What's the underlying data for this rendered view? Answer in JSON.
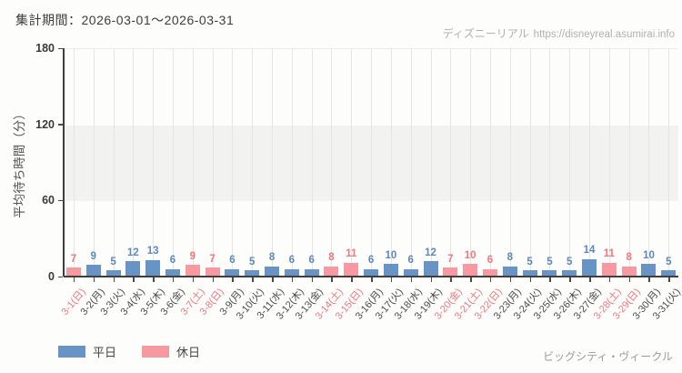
{
  "header": {
    "period_label": "集計期間：2026-03-01〜2026-03-31",
    "watermark_brand": "ディズニーリアル",
    "watermark_url": "https://disneyreal.asumirai.info"
  },
  "chart_data": {
    "type": "bar",
    "title": "",
    "xlabel": "",
    "ylabel": "平均待ち時間（分）",
    "ylim": [
      0,
      180
    ],
    "yticks": [
      0,
      60,
      120,
      180
    ],
    "shaded_band": {
      "from": 60,
      "to": 120
    },
    "grid": "vertical",
    "categories": [
      "3-1(日)",
      "3-2(月)",
      "3-3(火)",
      "3-4(水)",
      "3-5(木)",
      "3-6(金)",
      "3-7(土)",
      "3-8(日)",
      "3-9(月)",
      "3-10(火)",
      "3-11(水)",
      "3-12(木)",
      "3-13(金)",
      "3-14(土)",
      "3-15(日)",
      "3-16(月)",
      "3-17(火)",
      "3-18(水)",
      "3-19(木)",
      "3-20(金)",
      "3-21(土)",
      "3-22(日)",
      "3-23(月)",
      "3-24(火)",
      "3-25(水)",
      "3-26(木)",
      "3-27(金)",
      "3-28(土)",
      "3-29(日)",
      "3-30(月)",
      "3-31(火)"
    ],
    "values": [
      7,
      9,
      5,
      12,
      13,
      6,
      9,
      7,
      6,
      5,
      8,
      6,
      6,
      8,
      11,
      6,
      10,
      6,
      12,
      7,
      10,
      6,
      8,
      5,
      5,
      5,
      14,
      11,
      8,
      10,
      5
    ],
    "day_types": [
      "holiday",
      "weekday",
      "weekday",
      "weekday",
      "weekday",
      "weekday",
      "holiday",
      "holiday",
      "weekday",
      "weekday",
      "weekday",
      "weekday",
      "weekday",
      "holiday",
      "holiday",
      "weekday",
      "weekday",
      "weekday",
      "weekday",
      "holiday",
      "holiday",
      "holiday",
      "weekday",
      "weekday",
      "weekday",
      "weekday",
      "weekday",
      "holiday",
      "holiday",
      "weekday",
      "weekday"
    ],
    "colors": {
      "weekday_bar": "#6794c4",
      "holiday_bar": "#f899a1",
      "weekday_label": "#5d89bd",
      "holiday_label": "#f0777f",
      "holiday_axis_text": "#f0757d",
      "weekday_axis_text": "#4a4a4a"
    },
    "legend": [
      {
        "key": "weekday",
        "label": "平日"
      },
      {
        "key": "holiday",
        "label": "休日"
      }
    ],
    "legend_position": "bottom-left"
  },
  "footer": {
    "attraction": "ビッグシティ・ヴィークル"
  }
}
